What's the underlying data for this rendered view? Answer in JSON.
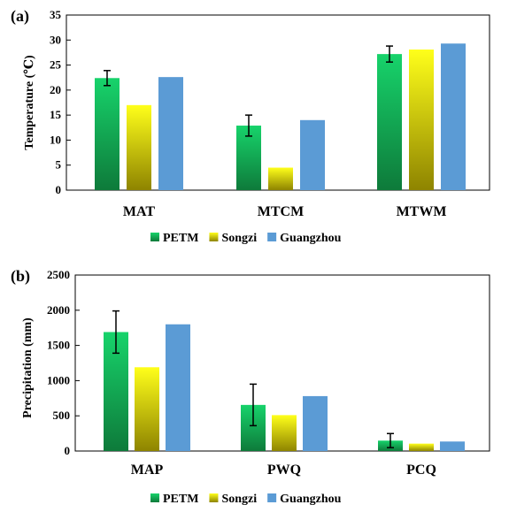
{
  "chart_data": [
    {
      "panel_label": "(a)",
      "type": "bar",
      "categories": [
        "MAT",
        "MTCM",
        "MTWM"
      ],
      "ylabel": "Temperature (℃)",
      "ylim": [
        0,
        35
      ],
      "yticks": [
        "0",
        "5",
        "10",
        "15",
        "20",
        "25",
        "30",
        "35"
      ],
      "grid": false,
      "legend_position": "bottom",
      "series": [
        {
          "name": "PETM",
          "values": [
            22.4,
            12.9,
            27.2
          ],
          "error": [
            1.5,
            2.1,
            1.6
          ]
        },
        {
          "name": "Songzi",
          "values": [
            17.0,
            4.5,
            28.1
          ]
        },
        {
          "name": "Guangzhou",
          "values": [
            22.6,
            14.0,
            29.3
          ]
        }
      ]
    },
    {
      "panel_label": "(b)",
      "type": "bar",
      "categories": [
        "MAP",
        "PWQ",
        "PCQ"
      ],
      "ylabel": "Precipitation (mm)",
      "ylim": [
        0,
        2500
      ],
      "yticks": [
        "0",
        "500",
        "1000",
        "1500",
        "2000",
        "2500"
      ],
      "grid": false,
      "legend_position": "bottom",
      "series": [
        {
          "name": "PETM",
          "values": [
            1690,
            655,
            148
          ],
          "error": [
            300,
            295,
            100
          ]
        },
        {
          "name": "Songzi",
          "values": [
            1190,
            510,
            105
          ]
        },
        {
          "name": "Guangzhou",
          "values": [
            1800,
            780,
            135
          ]
        }
      ]
    }
  ],
  "colors": {
    "PETM_top": "#17d36b",
    "PETM_bottom": "#0e7a3a",
    "Songzi_top": "#ffff1a",
    "Songzi_bottom": "#8e8400",
    "Guangzhou": "#5b9bd5"
  }
}
